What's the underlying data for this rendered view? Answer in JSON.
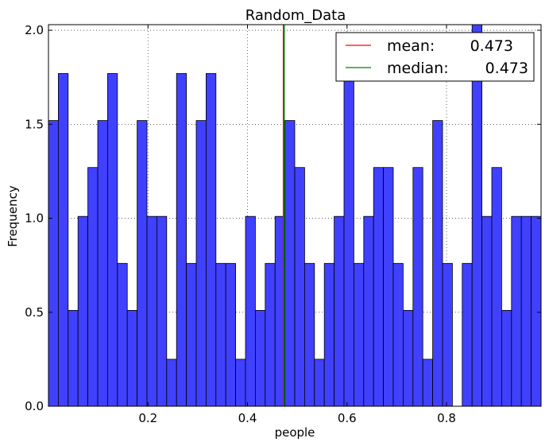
{
  "chart_data": {
    "type": "bar",
    "title": "Random_Data",
    "xlabel": "people",
    "ylabel": "Frequency",
    "xlim": [
      0.0,
      0.99
    ],
    "ylim": [
      0.0,
      2.03
    ],
    "grid": true,
    "legend_position": "top-right",
    "x_ticks": [
      {
        "value": 0.2,
        "label": "0.2"
      },
      {
        "value": 0.4,
        "label": "0.4"
      },
      {
        "value": 0.6,
        "label": "0.6"
      },
      {
        "value": 0.8,
        "label": "0.8"
      }
    ],
    "y_ticks": [
      {
        "value": 0.0,
        "label": "0.0"
      },
      {
        "value": 0.5,
        "label": "0.5"
      },
      {
        "value": 1.0,
        "label": "1.0"
      },
      {
        "value": 1.5,
        "label": "1.5"
      },
      {
        "value": 2.0,
        "label": "2.0"
      }
    ],
    "bin_start": 0.0,
    "bin_width": 0.0198,
    "values": [
      1.52,
      1.77,
      0.51,
      1.01,
      1.27,
      1.52,
      1.77,
      0.76,
      0.51,
      1.52,
      1.01,
      1.01,
      0.25,
      1.77,
      0.76,
      1.52,
      1.77,
      0.76,
      0.76,
      0.25,
      1.01,
      0.51,
      0.76,
      1.01,
      1.52,
      1.27,
      0.76,
      0.25,
      0.76,
      1.01,
      1.77,
      0.76,
      1.01,
      1.27,
      1.27,
      0.76,
      0.51,
      1.27,
      0.25,
      1.52,
      0.76,
      0.0,
      0.76,
      2.03,
      1.01,
      1.27,
      0.51,
      1.01,
      1.01,
      1.01
    ],
    "bar_color": "#4040ff",
    "vlines": [
      {
        "name": "mean",
        "x": 0.473,
        "color": "#ff0000"
      },
      {
        "name": "median",
        "x": 0.473,
        "color": "#008000"
      }
    ],
    "legend": [
      {
        "label": "mean:",
        "value": "0.473",
        "color": "#ff0000"
      },
      {
        "label": "median:",
        "value": "0.473",
        "color": "#008000"
      }
    ]
  }
}
